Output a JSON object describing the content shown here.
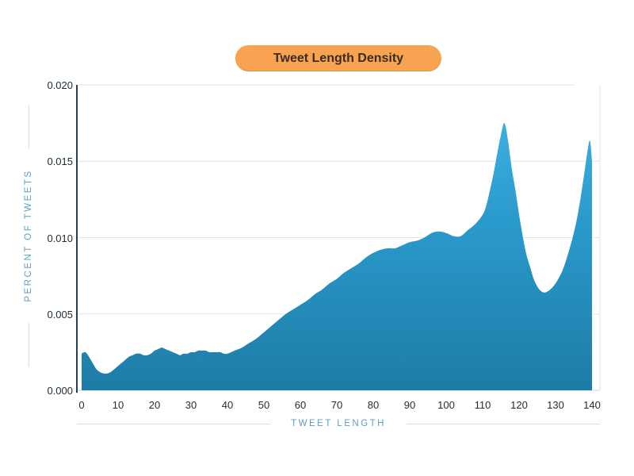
{
  "title": {
    "text": "Tweet Length Density"
  },
  "colors": {
    "badge_bg": "#F7A351",
    "badge_text": "#3B2B1B",
    "area_top": "#46B5E6",
    "area_mid": "#2A9ACC",
    "area_bottom": "#1E7CA6",
    "axis_line": "#27404F",
    "grid_line": "#DCE7EB",
    "baseline": "#C9D6DC",
    "tick_text": "#1C2B36",
    "axis_label_text": "#5C9EC4",
    "rule_line": "#D8DDE1"
  },
  "y_axis": {
    "tick_labels": [
      "0.000",
      "0.005",
      "0.010",
      "0.015",
      "0.020"
    ]
  },
  "x_axis": {
    "tick_labels": [
      "0",
      "10",
      "20",
      "30",
      "40",
      "50",
      "60",
      "70",
      "80",
      "90",
      "100",
      "110",
      "120",
      "130",
      "140"
    ]
  },
  "chart_data": {
    "type": "area",
    "title": "Tweet Length Density",
    "xlabel": "TWEET LENGTH",
    "ylabel": "PERCENT OF TWEETS",
    "xlim": [
      0,
      140
    ],
    "ylim": [
      0,
      0.02
    ],
    "x_ticks": [
      0,
      10,
      20,
      30,
      40,
      50,
      60,
      70,
      80,
      90,
      100,
      110,
      120,
      130,
      140
    ],
    "y_ticks": [
      0,
      0.005,
      0.01,
      0.015,
      0.02
    ],
    "grid": true,
    "legend": false,
    "x": [
      0,
      1,
      2,
      3,
      4,
      5,
      6,
      7,
      8,
      9,
      10,
      11,
      12,
      13,
      14,
      15,
      16,
      17,
      18,
      19,
      20,
      21,
      22,
      23,
      24,
      25,
      26,
      27,
      28,
      29,
      30,
      31,
      32,
      33,
      34,
      35,
      36,
      37,
      38,
      39,
      40,
      42,
      44,
      46,
      48,
      50,
      52,
      54,
      56,
      58,
      60,
      62,
      64,
      66,
      68,
      70,
      72,
      74,
      76,
      78,
      80,
      82,
      84,
      86,
      88,
      90,
      92,
      94,
      96,
      98,
      100,
      102,
      104,
      106,
      108,
      110,
      111,
      112,
      113,
      114,
      115,
      116,
      117,
      118,
      119,
      120,
      121,
      122,
      123,
      124,
      125,
      126,
      127,
      128,
      129,
      130,
      131,
      132,
      133,
      134,
      135,
      136,
      137,
      138,
      139,
      139.5,
      140
    ],
    "y": [
      0.0024,
      0.0025,
      0.0022,
      0.0018,
      0.0014,
      0.0012,
      0.0011,
      0.0011,
      0.0012,
      0.0014,
      0.0016,
      0.0018,
      0.002,
      0.0022,
      0.0023,
      0.0024,
      0.0024,
      0.0023,
      0.0023,
      0.0024,
      0.0026,
      0.0027,
      0.0028,
      0.0027,
      0.0026,
      0.0025,
      0.0024,
      0.0023,
      0.0024,
      0.0024,
      0.0025,
      0.0025,
      0.0026,
      0.0026,
      0.0026,
      0.0025,
      0.0025,
      0.0025,
      0.0025,
      0.0024,
      0.0024,
      0.0026,
      0.0028,
      0.0031,
      0.0034,
      0.0038,
      0.0042,
      0.0046,
      0.005,
      0.0053,
      0.0056,
      0.0059,
      0.0063,
      0.0066,
      0.007,
      0.0073,
      0.0077,
      0.008,
      0.0083,
      0.0087,
      0.009,
      0.0092,
      0.0093,
      0.0093,
      0.0095,
      0.0097,
      0.0098,
      0.01,
      0.0103,
      0.0104,
      0.0103,
      0.0101,
      0.0101,
      0.0105,
      0.0109,
      0.0115,
      0.0121,
      0.0131,
      0.0142,
      0.0155,
      0.0167,
      0.0175,
      0.0163,
      0.0145,
      0.0131,
      0.0115,
      0.0101,
      0.0089,
      0.0081,
      0.0073,
      0.0068,
      0.0065,
      0.0064,
      0.0065,
      0.0067,
      0.007,
      0.0074,
      0.0079,
      0.0086,
      0.0094,
      0.0103,
      0.0114,
      0.0128,
      0.0144,
      0.016,
      0.0163,
      0.015
    ]
  }
}
